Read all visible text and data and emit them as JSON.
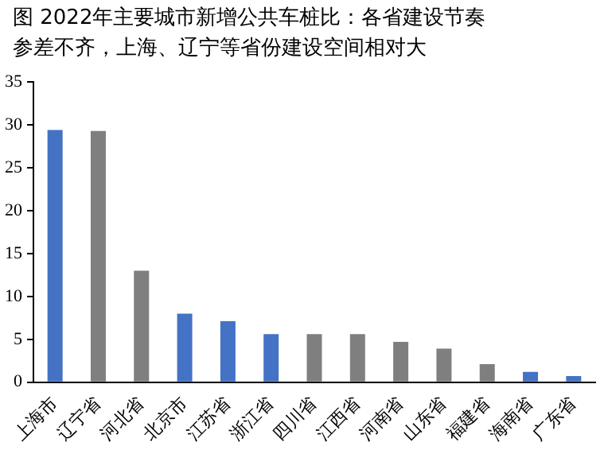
{
  "chart_data": {
    "type": "bar",
    "title": "图  2022年主要城市新增公共车桩比：各省建设节奏参差不齐，上海、辽宁等省份建设空间相对大",
    "categories": [
      "上海市",
      "辽宁省",
      "河北省",
      "北京市",
      "江苏省",
      "浙江省",
      "四川省",
      "江西省",
      "河南省",
      "山东省",
      "福建省",
      "海南省",
      "广东省"
    ],
    "values": [
      29.4,
      29.3,
      13,
      8,
      7.1,
      5.6,
      5.6,
      5.6,
      4.7,
      3.9,
      2.1,
      1.2,
      0.7
    ],
    "colors": [
      "#4472c4",
      "#7f7f7f",
      "#7f7f7f",
      "#4472c4",
      "#4472c4",
      "#4472c4",
      "#7f7f7f",
      "#7f7f7f",
      "#7f7f7f",
      "#7f7f7f",
      "#7f7f7f",
      "#4472c4",
      "#4472c4"
    ],
    "ylim": [
      0,
      35
    ],
    "yticks": [
      0,
      5,
      10,
      15,
      20,
      25,
      30,
      35
    ],
    "grid": false,
    "legend": false
  }
}
